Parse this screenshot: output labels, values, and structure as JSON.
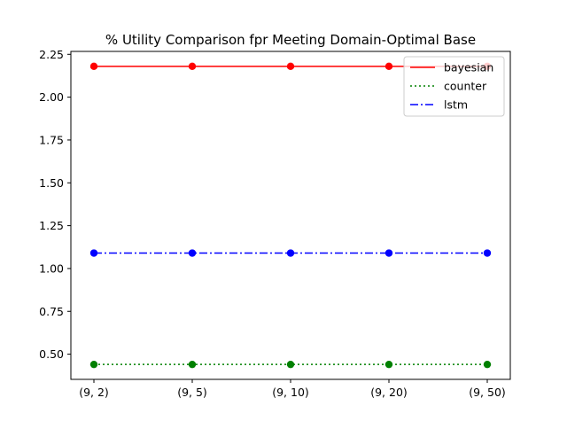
{
  "chart_data": {
    "type": "line",
    "title": "% Utility Comparison fpr  Meeting Domain-Optimal Base",
    "xlabel": "",
    "ylabel": "",
    "categories": [
      "(9, 2)",
      "(9, 5)",
      "(9, 10)",
      "(9, 20)",
      "(9, 50)"
    ],
    "series": [
      {
        "name": "bayesian",
        "values": [
          2.18,
          2.18,
          2.18,
          2.18,
          2.18
        ],
        "color": "#ff0000",
        "marker_color": "#ff0000",
        "linestyle": "solid"
      },
      {
        "name": "counter",
        "values": [
          0.44,
          0.44,
          0.44,
          0.44,
          0.44
        ],
        "color": "#008000",
        "marker_color": "#008000",
        "linestyle": "dotted"
      },
      {
        "name": "lstm",
        "values": [
          1.09,
          1.09,
          1.09,
          1.09,
          1.09
        ],
        "color": "#0000ff",
        "marker_color": "#0000ff",
        "linestyle": "dashdot"
      }
    ],
    "yticks": [
      "0.50",
      "0.75",
      "1.00",
      "1.25",
      "1.50",
      "1.75",
      "2.00",
      "2.25"
    ],
    "ylim": [
      0.353,
      2.267
    ],
    "grid": false,
    "legend_position": "top-right"
  }
}
